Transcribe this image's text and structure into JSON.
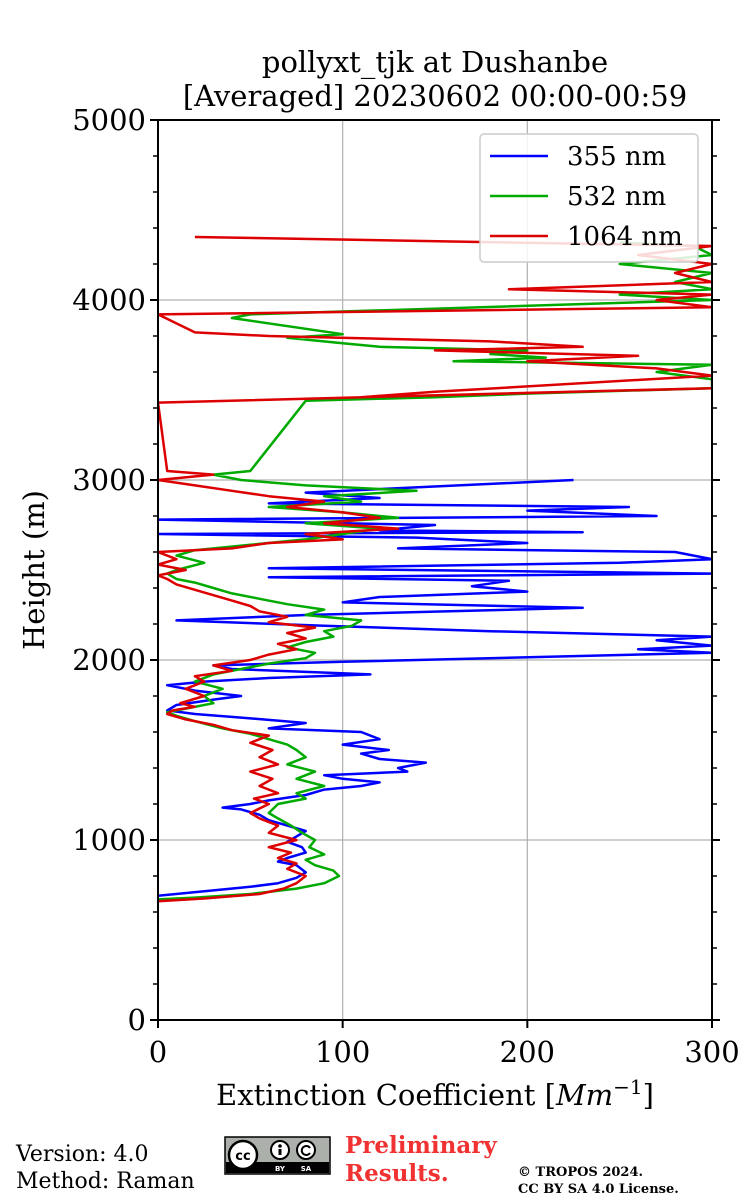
{
  "chart_data": {
    "type": "line",
    "title": "pollyxt_tjk at Dushanbe",
    "subtitle": "[Averaged] 20230602 00:00-00:59",
    "xlabel": "Extinction Coefficient [Mm⁻¹]",
    "ylabel": "Height (m)",
    "xlim": [
      0,
      300
    ],
    "ylim": [
      0,
      5000
    ],
    "xticks": [
      0,
      100,
      200,
      300
    ],
    "yticks": [
      0,
      1000,
      2000,
      3000,
      4000,
      5000
    ],
    "grid": true,
    "legend_position": "top-right",
    "series": [
      {
        "name": "355 nm",
        "color": "#0000ff",
        "points": [
          [
            0,
            690
          ],
          [
            30,
            720
          ],
          [
            50,
            740
          ],
          [
            65,
            760
          ],
          [
            75,
            790
          ],
          [
            80,
            820
          ],
          [
            75,
            860
          ],
          [
            65,
            880
          ],
          [
            70,
            900
          ],
          [
            80,
            930
          ],
          [
            78,
            960
          ],
          [
            70,
            990
          ],
          [
            75,
            1020
          ],
          [
            80,
            1050
          ],
          [
            70,
            1080
          ],
          [
            60,
            1110
          ],
          [
            55,
            1140
          ],
          [
            45,
            1170
          ],
          [
            35,
            1180
          ],
          [
            50,
            1200
          ],
          [
            60,
            1220
          ],
          [
            80,
            1250
          ],
          [
            90,
            1280
          ],
          [
            110,
            1300
          ],
          [
            120,
            1320
          ],
          [
            100,
            1340
          ],
          [
            90,
            1360
          ],
          [
            135,
            1380
          ],
          [
            130,
            1400
          ],
          [
            145,
            1430
          ],
          [
            120,
            1450
          ],
          [
            110,
            1480
          ],
          [
            125,
            1500
          ],
          [
            100,
            1530
          ],
          [
            120,
            1560
          ],
          [
            110,
            1600
          ],
          [
            60,
            1620
          ],
          [
            80,
            1650
          ],
          [
            45,
            1680
          ],
          [
            20,
            1700
          ],
          [
            5,
            1720
          ],
          [
            10,
            1750
          ],
          [
            30,
            1780
          ],
          [
            45,
            1800
          ],
          [
            20,
            1830
          ],
          [
            5,
            1860
          ],
          [
            25,
            1880
          ],
          [
            60,
            1900
          ],
          [
            115,
            1920
          ],
          [
            40,
            1950
          ],
          [
            30,
            1970
          ],
          [
            100,
            1990
          ],
          [
            220,
            2020
          ],
          [
            300,
            2040
          ],
          [
            260,
            2060
          ],
          [
            300,
            2080
          ],
          [
            270,
            2110
          ],
          [
            300,
            2130
          ],
          [
            180,
            2160
          ],
          [
            90,
            2190
          ],
          [
            10,
            2220
          ],
          [
            80,
            2250
          ],
          [
            230,
            2290
          ],
          [
            100,
            2320
          ],
          [
            120,
            2350
          ],
          [
            200,
            2380
          ],
          [
            170,
            2410
          ],
          [
            190,
            2440
          ],
          [
            60,
            2460
          ],
          [
            300,
            2480
          ],
          [
            60,
            2510
          ],
          [
            250,
            2540
          ],
          [
            300,
            2560
          ],
          [
            280,
            2600
          ],
          [
            130,
            2620
          ],
          [
            200,
            2650
          ],
          [
            140,
            2680
          ],
          [
            0,
            2700
          ],
          [
            230,
            2710
          ],
          [
            120,
            2720
          ],
          [
            150,
            2750
          ],
          [
            0,
            2780
          ],
          [
            270,
            2800
          ],
          [
            200,
            2830
          ],
          [
            255,
            2850
          ],
          [
            60,
            2870
          ],
          [
            120,
            2900
          ],
          [
            80,
            2930
          ],
          [
            225,
            3000
          ]
        ]
      },
      {
        "name": "532 nm",
        "color": "#00aa00",
        "points": [
          [
            0,
            670
          ],
          [
            20,
            680
          ],
          [
            50,
            700
          ],
          [
            75,
            730
          ],
          [
            90,
            760
          ],
          [
            98,
            800
          ],
          [
            95,
            830
          ],
          [
            85,
            860
          ],
          [
            80,
            890
          ],
          [
            90,
            920
          ],
          [
            82,
            960
          ],
          [
            85,
            1000
          ],
          [
            78,
            1040
          ],
          [
            72,
            1080
          ],
          [
            65,
            1120
          ],
          [
            60,
            1150
          ],
          [
            65,
            1200
          ],
          [
            80,
            1230
          ],
          [
            75,
            1260
          ],
          [
            90,
            1300
          ],
          [
            75,
            1340
          ],
          [
            85,
            1380
          ],
          [
            70,
            1420
          ],
          [
            80,
            1460
          ],
          [
            75,
            1500
          ],
          [
            70,
            1530
          ],
          [
            60,
            1560
          ],
          [
            50,
            1590
          ],
          [
            35,
            1620
          ],
          [
            20,
            1660
          ],
          [
            10,
            1690
          ],
          [
            5,
            1710
          ],
          [
            15,
            1730
          ],
          [
            30,
            1760
          ],
          [
            25,
            1800
          ],
          [
            35,
            1840
          ],
          [
            20,
            1880
          ],
          [
            30,
            1920
          ],
          [
            45,
            1950
          ],
          [
            60,
            1980
          ],
          [
            80,
            2010
          ],
          [
            85,
            2040
          ],
          [
            70,
            2070
          ],
          [
            80,
            2100
          ],
          [
            95,
            2130
          ],
          [
            90,
            2160
          ],
          [
            105,
            2190
          ],
          [
            110,
            2220
          ],
          [
            80,
            2250
          ],
          [
            90,
            2280
          ],
          [
            70,
            2310
          ],
          [
            55,
            2340
          ],
          [
            40,
            2370
          ],
          [
            30,
            2400
          ],
          [
            20,
            2430
          ],
          [
            10,
            2450
          ],
          [
            5,
            2480
          ],
          [
            10,
            2500
          ],
          [
            25,
            2540
          ],
          [
            10,
            2580
          ],
          [
            20,
            2610
          ],
          [
            50,
            2640
          ],
          [
            80,
            2670
          ],
          [
            100,
            2700
          ],
          [
            120,
            2730
          ],
          [
            80,
            2760
          ],
          [
            130,
            2790
          ],
          [
            100,
            2820
          ],
          [
            60,
            2850
          ],
          [
            110,
            2880
          ],
          [
            90,
            2910
          ],
          [
            140,
            2940
          ],
          [
            80,
            2970
          ],
          [
            45,
            3000
          ],
          [
            30,
            3030
          ],
          [
            50,
            3050
          ],
          [
            80,
            3440
          ],
          [
            150,
            3460
          ],
          [
            200,
            3480
          ],
          [
            300,
            3510
          ],
          [
            300,
            3560
          ],
          [
            270,
            3600
          ],
          [
            300,
            3640
          ],
          [
            160,
            3660
          ],
          [
            210,
            3680
          ],
          [
            180,
            3700
          ],
          [
            200,
            3720
          ],
          [
            120,
            3740
          ],
          [
            100,
            3760
          ],
          [
            70,
            3790
          ],
          [
            100,
            3810
          ],
          [
            40,
            3900
          ],
          [
            50,
            3920
          ],
          [
            300,
            4000
          ],
          [
            250,
            4030
          ],
          [
            300,
            4060
          ],
          [
            280,
            4100
          ],
          [
            300,
            4150
          ],
          [
            250,
            4200
          ],
          [
            300,
            4250
          ],
          [
            290,
            4300
          ],
          [
            250,
            4320
          ]
        ]
      },
      {
        "name": "1064 nm",
        "color": "#dd0000",
        "points": [
          [
            0,
            660
          ],
          [
            25,
            675
          ],
          [
            55,
            700
          ],
          [
            68,
            730
          ],
          [
            75,
            760
          ],
          [
            80,
            800
          ],
          [
            70,
            840
          ],
          [
            75,
            870
          ],
          [
            65,
            900
          ],
          [
            72,
            930
          ],
          [
            60,
            960
          ],
          [
            75,
            1000
          ],
          [
            60,
            1040
          ],
          [
            65,
            1080
          ],
          [
            55,
            1120
          ],
          [
            50,
            1150
          ],
          [
            60,
            1200
          ],
          [
            52,
            1230
          ],
          [
            65,
            1260
          ],
          [
            55,
            1300
          ],
          [
            62,
            1340
          ],
          [
            50,
            1380
          ],
          [
            65,
            1420
          ],
          [
            55,
            1460
          ],
          [
            62,
            1500
          ],
          [
            50,
            1540
          ],
          [
            60,
            1580
          ],
          [
            40,
            1610
          ],
          [
            30,
            1640
          ],
          [
            15,
            1670
          ],
          [
            5,
            1700
          ],
          [
            8,
            1720
          ],
          [
            20,
            1740
          ],
          [
            12,
            1760
          ],
          [
            25,
            1800
          ],
          [
            15,
            1840
          ],
          [
            25,
            1880
          ],
          [
            20,
            1910
          ],
          [
            40,
            1940
          ],
          [
            30,
            1970
          ],
          [
            50,
            2000
          ],
          [
            60,
            2030
          ],
          [
            75,
            2060
          ],
          [
            65,
            2090
          ],
          [
            80,
            2120
          ],
          [
            70,
            2150
          ],
          [
            85,
            2180
          ],
          [
            60,
            2210
          ],
          [
            70,
            2240
          ],
          [
            55,
            2270
          ],
          [
            50,
            2300
          ],
          [
            40,
            2330
          ],
          [
            30,
            2360
          ],
          [
            20,
            2390
          ],
          [
            10,
            2420
          ],
          [
            5,
            2450
          ],
          [
            0,
            2470
          ],
          [
            15,
            2500
          ],
          [
            0,
            2530
          ],
          [
            10,
            2560
          ],
          [
            0,
            2600
          ],
          [
            40,
            2620
          ],
          [
            60,
            2650
          ],
          [
            100,
            2670
          ],
          [
            80,
            2700
          ],
          [
            130,
            2730
          ],
          [
            90,
            2760
          ],
          [
            120,
            2790
          ],
          [
            100,
            2820
          ],
          [
            70,
            2850
          ],
          [
            90,
            2880
          ],
          [
            60,
            2910
          ],
          [
            40,
            2940
          ],
          [
            20,
            2970
          ],
          [
            0,
            3000
          ],
          [
            30,
            3030
          ],
          [
            5,
            3050
          ],
          [
            0,
            3430
          ],
          [
            300,
            3510
          ],
          [
            110,
            3460
          ],
          [
            150,
            3490
          ],
          [
            300,
            3580
          ],
          [
            270,
            3620
          ],
          [
            200,
            3660
          ],
          [
            260,
            3690
          ],
          [
            150,
            3720
          ],
          [
            230,
            3740
          ],
          [
            180,
            3770
          ],
          [
            60,
            3800
          ],
          [
            20,
            3820
          ],
          [
            0,
            3920
          ],
          [
            300,
            3960
          ],
          [
            270,
            4000
          ],
          [
            300,
            4030
          ],
          [
            190,
            4060
          ],
          [
            300,
            4100
          ],
          [
            280,
            4150
          ],
          [
            300,
            4200
          ],
          [
            260,
            4250
          ],
          [
            300,
            4300
          ],
          [
            20,
            4350
          ]
        ]
      }
    ]
  },
  "footer": {
    "version": "Version: 4.0",
    "method": "Method: Raman",
    "preliminary_line1": "Preliminary",
    "preliminary_line2": "Results.",
    "copyright_line1": "© TROPOS 2024.",
    "copyright_line2": "CC BY SA 4.0 License.",
    "license_badge": {
      "cc": "cc",
      "by": "BY",
      "sa": "SA",
      "icon": "cc-by-sa-icon"
    }
  }
}
